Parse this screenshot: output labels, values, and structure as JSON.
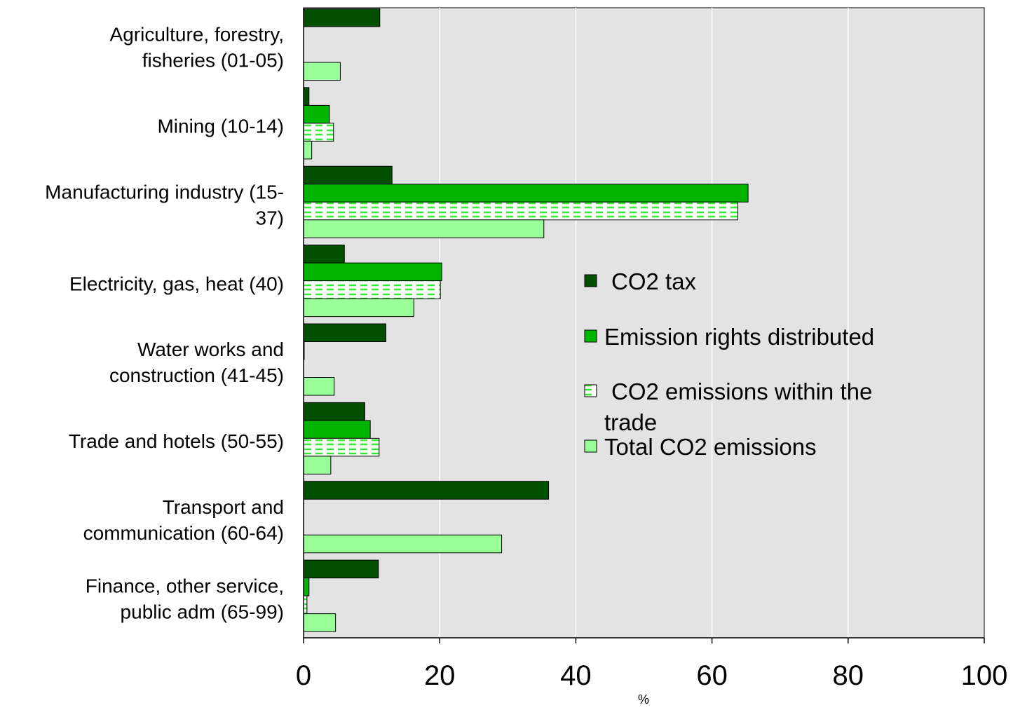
{
  "chart_data": {
    "type": "bar",
    "orientation": "horizontal",
    "categories": [
      [
        "Agriculture, forestry,",
        "fisheries (01-05)"
      ],
      [
        "Mining (10-14)"
      ],
      [
        "Manufacturing industry (15-",
        "37)"
      ],
      [
        "Electricity, gas, heat (40)"
      ],
      [
        "Water works and",
        "construction (41-45)"
      ],
      [
        "Trade and hotels (50-55)"
      ],
      [
        "Transport and",
        "communication (60-64)"
      ],
      [
        "Finance, other service,",
        "public adm (65-99)"
      ]
    ],
    "series": [
      {
        "name": "CO2 tax",
        "color": "#005000",
        "pattern": "solid",
        "values": [
          11.2,
          0.8,
          13.0,
          6.0,
          12.1,
          9.0,
          36.0,
          11.0
        ]
      },
      {
        "name": "Emission rights distributed",
        "color": "#00b400",
        "pattern": "solid",
        "values": [
          0,
          3.8,
          65.3,
          20.3,
          0.1,
          9.8,
          0,
          0.8
        ]
      },
      {
        "name": "CO2 emissions within the trade",
        "color": "#ffffff",
        "pattern": "dashed-green",
        "values": [
          0,
          4.4,
          63.8,
          20.1,
          0,
          11.1,
          0,
          0.5
        ]
      },
      {
        "name": "Total CO2 emissions",
        "color": "#99ff99",
        "pattern": "solid",
        "values": [
          5.4,
          1.2,
          35.3,
          16.2,
          4.5,
          4.0,
          29.1,
          4.7
        ]
      }
    ],
    "xlabel": "%",
    "xlim": [
      0,
      100
    ],
    "xticks": [
      0,
      20,
      40,
      60,
      80,
      100
    ],
    "legend": "right-inside",
    "grid": "vertical",
    "plot_background": "#e3e3e3"
  }
}
